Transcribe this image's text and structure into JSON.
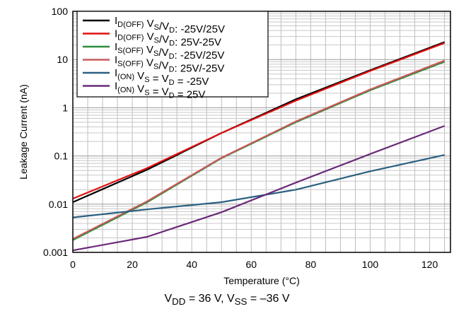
{
  "chart_data": {
    "type": "line",
    "xlabel": "Temperature (°C)",
    "ylabel": "Leakage Current (nA)",
    "xlim": [
      0,
      127
    ],
    "ylim": [
      0.001,
      100
    ],
    "yscale": "log",
    "grid": true,
    "legend_position": "top-left",
    "x_ticks": [
      "0",
      "20",
      "40",
      "60",
      "80",
      "100",
      "120"
    ],
    "y_ticks": [
      "0.001",
      "0.01",
      "0.1",
      "1",
      "10",
      "100"
    ],
    "series": [
      {
        "color": "#000000",
        "legend": {
          "main": "I",
          "sub1": "D(OFF)",
          "mid": " V",
          "s1": "S",
          "slash": "/V",
          "s2": "D",
          "tail": ": -25V/25V"
        },
        "x": [
          0,
          25,
          50,
          75,
          100,
          125
        ],
        "y": [
          0.011,
          0.052,
          0.3,
          1.5,
          6.0,
          23.0
        ]
      },
      {
        "color": "#e01010",
        "legend": {
          "main": "I",
          "sub1": "D(OFF)",
          "mid": " V",
          "s1": "S",
          "slash": "/V",
          "s2": "D",
          "tail": ": 25V-25V"
        },
        "x": [
          0,
          25,
          50,
          75,
          100,
          125
        ],
        "y": [
          0.013,
          0.056,
          0.3,
          1.4,
          5.8,
          22.0
        ]
      },
      {
        "color": "#2e8b3a",
        "legend": {
          "main": "I",
          "sub1": "S(OFF)",
          "mid": " V",
          "s1": "S",
          "slash": "/V",
          "s2": "D",
          "tail": ": -25V/25V"
        },
        "x": [
          0,
          25,
          50,
          75,
          100,
          125
        ],
        "y": [
          0.0018,
          0.011,
          0.09,
          0.5,
          2.3,
          9.0
        ]
      },
      {
        "color": "#c85a5a",
        "legend": {
          "main": "I",
          "sub1": "S(OFF)",
          "mid": " V",
          "s1": "S",
          "slash": "/V",
          "s2": "D",
          "tail": ": 25V/-25V"
        },
        "x": [
          0,
          25,
          50,
          75,
          100,
          125
        ],
        "y": [
          0.0019,
          0.0115,
          0.092,
          0.52,
          2.4,
          9.5
        ]
      },
      {
        "color": "#2a6080",
        "legend": {
          "main": "I",
          "sub1": "(ON)",
          "mid": " V",
          "s1": "S",
          "slash": " = V",
          "s2": "D",
          "tail": " = -25V"
        },
        "x": [
          0,
          25,
          50,
          75,
          100,
          125
        ],
        "y": [
          0.0053,
          0.0078,
          0.011,
          0.02,
          0.048,
          0.105
        ]
      },
      {
        "color": "#6a2a78",
        "legend": {
          "main": "I",
          "sub1": "(ON)",
          "mid": " V",
          "s1": "S",
          "slash": " = V",
          "s2": "D",
          "tail": " = 25V"
        },
        "x": [
          0,
          25,
          50,
          75,
          100,
          125
        ],
        "y": [
          0.0011,
          0.0021,
          0.0068,
          0.028,
          0.11,
          0.42
        ]
      }
    ]
  },
  "caption": {
    "a": "V",
    "a_sub": "DD",
    "b": " = 36 V, V",
    "b_sub": "SS",
    "c": " = –36 V"
  }
}
